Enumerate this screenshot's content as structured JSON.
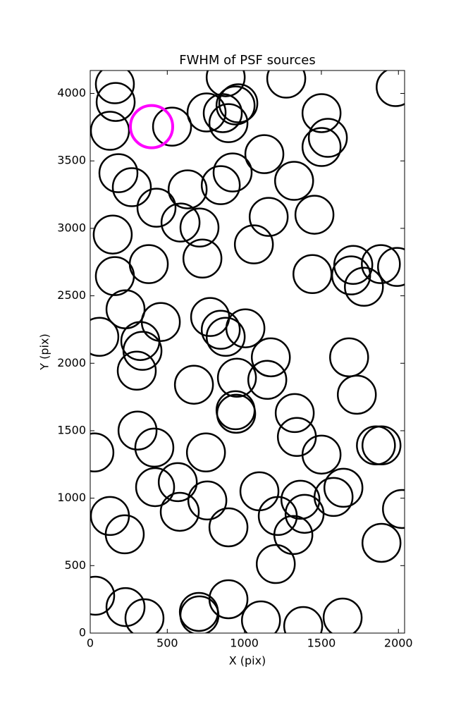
{
  "chart_data": {
    "type": "scatter",
    "title": "FWHM of PSF sources",
    "x_label": "X (pix)",
    "y_label": "Y (pix)",
    "xlim": [
      0,
      2040
    ],
    "ylim": [
      0,
      4170
    ],
    "xticks": [
      0,
      500,
      1000,
      1500,
      2000
    ],
    "yticks": [
      0,
      500,
      1000,
      1500,
      2000,
      2500,
      3000,
      3500,
      4000
    ],
    "series": [
      {
        "color": "#000000",
        "x": [
          160,
          165,
          128,
          183,
          270,
          430,
          531,
          632,
          586,
          709,
          755,
          879,
          860,
          943,
          961,
          897,
          847,
          924,
          1130,
          1272,
          1501,
          1542,
          1501,
          1323,
          1158,
          1455,
          1982,
          146,
          160,
          380,
          728,
          1062,
          1442,
          1707,
          1693,
          1776,
          1886,
          1991,
          229,
          59,
          458,
          778,
          847,
          879,
          1007,
          325,
          339,
          302,
          1172,
          952,
          1149,
          673,
          1680,
          1730,
          943,
          947,
          1327,
          1341,
          1501,
          1854,
          1890,
          307,
          416,
          751,
          27,
          421,
          568,
          581,
          760,
          128,
          224,
          897,
          1098,
          1217,
          1364,
          1391,
          1318,
          1579,
          1643,
          2023,
          1890,
          1204,
          32,
          229,
          352,
          705,
          709,
          897,
          1108,
          1382,
          1638
        ],
        "values": [
          4068,
          3937,
          3723,
          3409,
          3305,
          3153,
          3754,
          3289,
          3043,
          3006,
          3859,
          4120,
          3854,
          3911,
          3927,
          3780,
          3320,
          3414,
          3550,
          4110,
          3854,
          3671,
          3603,
          3352,
          3085,
          3101,
          4047,
          2954,
          2646,
          2735,
          2776,
          2881,
          2661,
          2729,
          2651,
          2567,
          2735,
          2714,
          2400,
          2196,
          2306,
          2343,
          2248,
          2196,
          2259,
          2165,
          2092,
          1945,
          2044,
          1893,
          1877,
          1841,
          2044,
          1767,
          1652,
          1626,
          1631,
          1454,
          1323,
          1391,
          1391,
          1501,
          1375,
          1339,
          1339,
          1082,
          1119,
          899,
          983,
          868,
          732,
          784,
          1051,
          868,
          988,
          884,
          727,
          1009,
          1077,
          920,
          669,
          512,
          277,
          193,
          110,
          157,
          131,
          251,
          94,
          52,
          115
        ]
      },
      {
        "color": "#ff00ff",
        "x": [
          398
        ],
        "values": [
          3754
        ]
      }
    ]
  }
}
